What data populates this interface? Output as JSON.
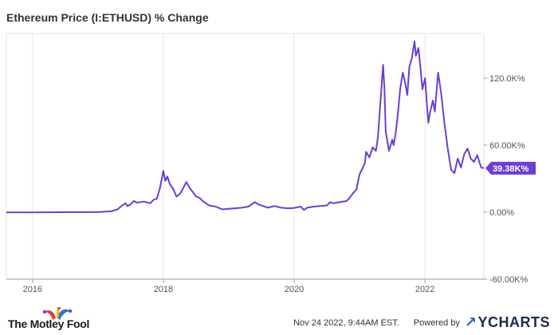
{
  "chart_data": {
    "type": "line",
    "title": "Ethereum Price (I:ETHUSD) % Change",
    "xlabel": "",
    "ylabel": "",
    "ylim": [
      -60000,
      160000
    ],
    "xlim": [
      2015.6,
      2022.9
    ],
    "y_ticks": [
      {
        "value": 120000,
        "label": "120.0K%"
      },
      {
        "value": 60000,
        "label": "60.00K%"
      },
      {
        "value": 0,
        "label": "0.00%"
      },
      {
        "value": -60000,
        "label": "-60.00K%"
      }
    ],
    "x_ticks": [
      {
        "value": 2016,
        "label": "2016"
      },
      {
        "value": 2018,
        "label": "2018"
      },
      {
        "value": 2020,
        "label": "2020"
      },
      {
        "value": 2022,
        "label": "2022"
      }
    ],
    "grid": {
      "vertical": true,
      "horizontal": false
    },
    "last_value_label": "39.38K%",
    "series": [
      {
        "color": "#6a3fd1",
        "points": [
          [
            2015.6,
            -200
          ],
          [
            2016.0,
            -180
          ],
          [
            2016.5,
            0
          ],
          [
            2017.0,
            100
          ],
          [
            2017.2,
            800
          ],
          [
            2017.3,
            2500
          ],
          [
            2017.35,
            5000
          ],
          [
            2017.42,
            8000
          ],
          [
            2017.45,
            5500
          ],
          [
            2017.5,
            7000
          ],
          [
            2017.55,
            10000
          ],
          [
            2017.6,
            8500
          ],
          [
            2017.7,
            9500
          ],
          [
            2017.8,
            8000
          ],
          [
            2017.85,
            11000
          ],
          [
            2017.9,
            12000
          ],
          [
            2017.95,
            22000
          ],
          [
            2018.0,
            37000
          ],
          [
            2018.03,
            28000
          ],
          [
            2018.06,
            32000
          ],
          [
            2018.1,
            25000
          ],
          [
            2018.15,
            21000
          ],
          [
            2018.2,
            14000
          ],
          [
            2018.25,
            16000
          ],
          [
            2018.3,
            21000
          ],
          [
            2018.35,
            27000
          ],
          [
            2018.4,
            22000
          ],
          [
            2018.45,
            18000
          ],
          [
            2018.5,
            14000
          ],
          [
            2018.55,
            13000
          ],
          [
            2018.6,
            10000
          ],
          [
            2018.7,
            6000
          ],
          [
            2018.8,
            5000
          ],
          [
            2018.9,
            2500
          ],
          [
            2019.0,
            3000
          ],
          [
            2019.1,
            3500
          ],
          [
            2019.2,
            4000
          ],
          [
            2019.3,
            5000
          ],
          [
            2019.4,
            9000
          ],
          [
            2019.45,
            7000
          ],
          [
            2019.5,
            6000
          ],
          [
            2019.6,
            4000
          ],
          [
            2019.7,
            5500
          ],
          [
            2019.8,
            4000
          ],
          [
            2019.9,
            3500
          ],
          [
            2020.0,
            3800
          ],
          [
            2020.1,
            5000
          ],
          [
            2020.15,
            2000
          ],
          [
            2020.2,
            4000
          ],
          [
            2020.3,
            5000
          ],
          [
            2020.4,
            5500
          ],
          [
            2020.5,
            6000
          ],
          [
            2020.55,
            9000
          ],
          [
            2020.6,
            8000
          ],
          [
            2020.7,
            9000
          ],
          [
            2020.8,
            10000
          ],
          [
            2020.85,
            13000
          ],
          [
            2020.9,
            17000
          ],
          [
            2020.95,
            20000
          ],
          [
            2021.0,
            34000
          ],
          [
            2021.05,
            40000
          ],
          [
            2021.08,
            44000
          ],
          [
            2021.1,
            54000
          ],
          [
            2021.15,
            49000
          ],
          [
            2021.2,
            58000
          ],
          [
            2021.25,
            55000
          ],
          [
            2021.28,
            67000
          ],
          [
            2021.32,
            100000
          ],
          [
            2021.36,
            132000
          ],
          [
            2021.38,
            110000
          ],
          [
            2021.4,
            72000
          ],
          [
            2021.45,
            55000
          ],
          [
            2021.5,
            65000
          ],
          [
            2021.52,
            60000
          ],
          [
            2021.55,
            70000
          ],
          [
            2021.58,
            85000
          ],
          [
            2021.62,
            110000
          ],
          [
            2021.66,
            125000
          ],
          [
            2021.7,
            115000
          ],
          [
            2021.73,
            105000
          ],
          [
            2021.76,
            130000
          ],
          [
            2021.8,
            138000
          ],
          [
            2021.84,
            153000
          ],
          [
            2021.86,
            140000
          ],
          [
            2021.9,
            147000
          ],
          [
            2021.93,
            130000
          ],
          [
            2021.96,
            110000
          ],
          [
            2022.0,
            120000
          ],
          [
            2022.05,
            80000
          ],
          [
            2022.08,
            90000
          ],
          [
            2022.12,
            100000
          ],
          [
            2022.15,
            90000
          ],
          [
            2022.2,
            125000
          ],
          [
            2022.25,
            105000
          ],
          [
            2022.3,
            78000
          ],
          [
            2022.35,
            56000
          ],
          [
            2022.4,
            38000
          ],
          [
            2022.45,
            35000
          ],
          [
            2022.5,
            48000
          ],
          [
            2022.55,
            40000
          ],
          [
            2022.6,
            52000
          ],
          [
            2022.65,
            57000
          ],
          [
            2022.7,
            48000
          ],
          [
            2022.75,
            45000
          ],
          [
            2022.8,
            51000
          ],
          [
            2022.83,
            45000
          ],
          [
            2022.86,
            40000
          ],
          [
            2022.9,
            39380
          ]
        ]
      }
    ]
  },
  "footer": {
    "brand": "The Motley Fool",
    "timestamp": "Nov 24 2022, 9:44AM EST.",
    "powered_by": "Powered by",
    "ycharts": "YCHARTS"
  }
}
